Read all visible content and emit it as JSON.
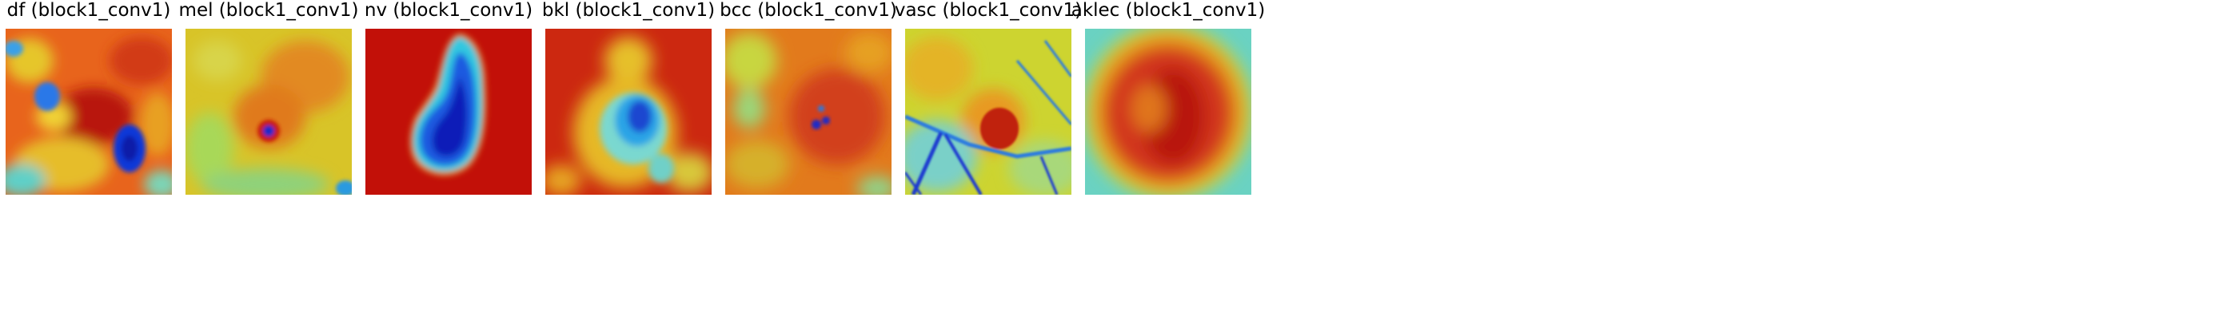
{
  "panels": [
    {
      "title": "df (block1_conv1)",
      "bg": "#e85a1a"
    },
    {
      "title": "mel (block1_conv1)",
      "bg": "#d8c225"
    },
    {
      "title": "nv (block1_conv1)",
      "bg": "#c21008"
    },
    {
      "title": "bkl (block1_conv1)",
      "bg": "#d83c14"
    },
    {
      "title": "bcc (block1_conv1)",
      "bg": "#e57a1c"
    },
    {
      "title": "vasc (block1_conv1)",
      "bg": "#cdd230"
    },
    {
      "title": "aklec (block1_conv1)",
      "bg": "#cf2a10"
    }
  ],
  "colormap": "jet"
}
